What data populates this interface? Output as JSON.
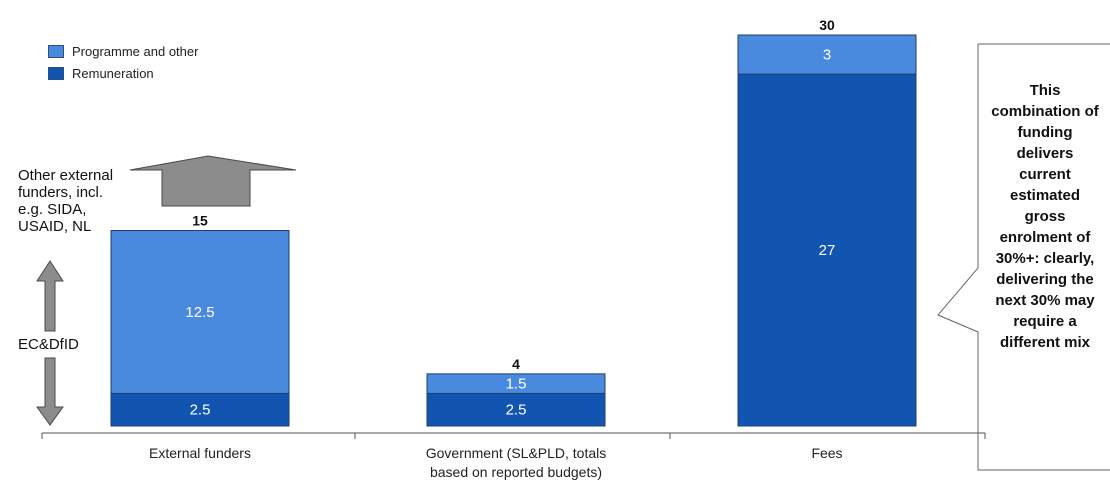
{
  "chart_data": {
    "type": "bar",
    "stacked": true,
    "categories": [
      "External funders",
      "Government (SL&PLD, totals based on reported budgets)",
      "Fees"
    ],
    "category_lines": [
      [
        "External funders"
      ],
      [
        "Government (SL&PLD, totals",
        "based on reported budgets)"
      ],
      [
        "Fees"
      ]
    ],
    "series": [
      {
        "name": "Remuneration",
        "values": [
          2.5,
          2.5,
          27
        ],
        "labels": [
          "2.5",
          "2.5",
          "27"
        ],
        "color": "#1155b0"
      },
      {
        "name": "Programme and other",
        "values": [
          12.5,
          1.5,
          3
        ],
        "labels": [
          "12.5",
          "1.5",
          "3"
        ],
        "color": "#4a8ade"
      }
    ],
    "totals": [
      15,
      4,
      30
    ],
    "total_labels": [
      "15",
      "4",
      "30"
    ],
    "ylim": [
      0,
      30
    ],
    "legend": [
      "Programme and other",
      "Remuneration"
    ],
    "legend_position": "top-left"
  },
  "annotations": {
    "other_funders": [
      "Other external",
      "funders, incl.",
      "e.g. SIDA,",
      "USAID, NL"
    ],
    "ec_dfid": "EC&DfID"
  },
  "callout": {
    "lines": [
      "This",
      "combination of",
      "funding",
      "delivers",
      "current",
      "estimated",
      "gross",
      "enrolment of",
      "30%+: clearly,",
      "delivering the",
      "next 30% may",
      "require a",
      "different mix"
    ]
  }
}
